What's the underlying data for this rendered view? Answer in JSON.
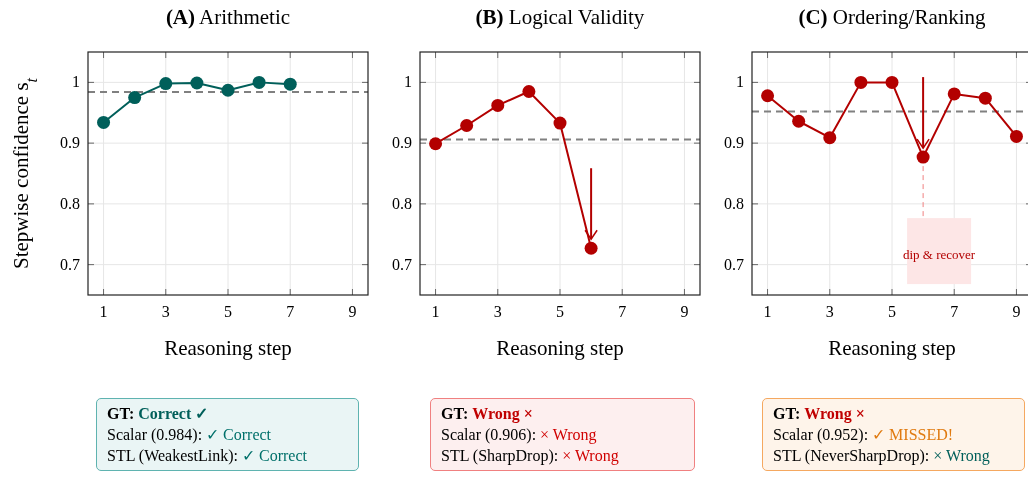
{
  "chart_data": [
    {
      "type": "line",
      "title": "(A) Arithmetic",
      "xlabel": "Reasoning step",
      "ylabel": "Stepwise confidence s$_{t}$",
      "x": [
        1,
        2,
        3,
        4,
        5,
        6,
        7
      ],
      "series": [
        {
          "color": "#005f5a",
          "values": [
            0.934,
            0.975,
            0.998,
            0.999,
            0.987,
            1.0,
            0.997
          ]
        }
      ],
      "xlim": [
        0.5,
        9.5
      ],
      "xticks": [
        1,
        3,
        5,
        7,
        9
      ],
      "ylim": [
        0.65,
        1.05
      ],
      "yticks": [
        0.7,
        0.8,
        0.9,
        1
      ],
      "grid": true,
      "marker": "circle",
      "line_style": "solid",
      "ref_lines": [
        {
          "axis": "y",
          "value": 0.984,
          "color": "#808080",
          "line_style": "dashed"
        }
      ]
    },
    {
      "type": "line",
      "title": "(B) Logical Validity",
      "xlabel": "Reasoning step",
      "x": [
        1,
        2,
        3,
        4,
        5,
        6
      ],
      "series": [
        {
          "color": "#b30000",
          "values": [
            0.899,
            0.929,
            0.962,
            0.985,
            0.933,
            0.727
          ]
        }
      ],
      "xlim": [
        0.5,
        9.5
      ],
      "xticks": [
        1,
        3,
        5,
        7,
        9
      ],
      "ylim": [
        0.65,
        1.05
      ],
      "yticks": [
        0.7,
        0.8,
        0.9,
        1
      ],
      "grid": true,
      "marker": "circle",
      "line_style": "solid",
      "ref_lines": [
        {
          "axis": "y",
          "value": 0.906,
          "color": "#808080",
          "line_style": "dashed"
        }
      ]
    },
    {
      "type": "line",
      "title": "(C) Ordering/Ranking",
      "xlabel": "Reasoning step",
      "x": [
        1,
        2,
        3,
        4,
        5,
        6,
        7,
        8,
        9
      ],
      "series": [
        {
          "color": "#b30000",
          "values": [
            0.978,
            0.936,
            0.909,
            1.0,
            1.0,
            0.877,
            0.981,
            0.974,
            0.911
          ]
        }
      ],
      "xlim": [
        0.5,
        9.5
      ],
      "xticks": [
        1,
        3,
        5,
        7,
        9
      ],
      "ylim": [
        0.65,
        1.05
      ],
      "yticks": [
        0.7,
        0.8,
        0.9,
        1
      ],
      "grid": true,
      "marker": "circle",
      "line_style": "solid",
      "ref_lines": [
        {
          "axis": "y",
          "value": 0.952,
          "color": "#808080",
          "line_style": "dashed"
        }
      ],
      "annotations": [
        "dip & recover"
      ]
    },
    {
      "type": "other",
      "color": "#5fb3b0",
      "annotations": [
        "GT:",
        "Correct ✓",
        "Scalar (0.984):",
        "✓ Correct",
        "STL (WeakestLink):",
        "✓ Correct"
      ],
      "colors": [
        "#005f5a",
        "#00706a",
        "#00706a"
      ]
    },
    {
      "type": "other",
      "color": "#f08080",
      "annotations": [
        "GT:",
        "Wrong ×",
        "Scalar (0.906):",
        "× Wrong",
        "STL (SharpDrop):",
        "× Wrong"
      ],
      "colors": [
        "#c00000",
        "#d00000",
        "#d00000"
      ]
    },
    {
      "type": "other",
      "color": "#f5a860",
      "annotations": [
        "GT:",
        "Wrong ×",
        "Scalar (0.952):",
        "✓ MISSED!",
        "STL (NeverSharpDrop):",
        "× Wrong"
      ],
      "colors": [
        "#c00000",
        "#e07a10",
        "#005f5a"
      ]
    }
  ]
}
